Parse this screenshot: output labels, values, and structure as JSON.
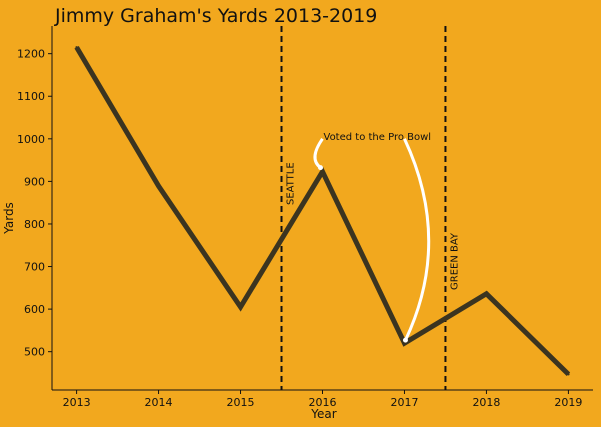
{
  "chart_data": {
    "type": "line",
    "title": "Jimmy Graham's Yards 2013-2019",
    "xlabel": "Year",
    "ylabel": "Yards",
    "x": [
      2013,
      2014,
      2015,
      2016,
      2017,
      2018,
      2019
    ],
    "series": [
      {
        "values": [
          1215,
          889,
          605,
          923,
          520,
          636,
          447
        ]
      }
    ],
    "xlim": [
      2012.7,
      2019.3
    ],
    "ylim": [
      410,
      1265
    ],
    "xticks": [
      "2013",
      "2014",
      "2015",
      "2016",
      "2017",
      "2018",
      "2019"
    ],
    "yticks": [
      "500",
      "600",
      "700",
      "800",
      "900",
      "1000",
      "1100",
      "1200"
    ],
    "grid": false,
    "vlines": [
      {
        "x": 2015.5,
        "label": "SEATTLE"
      },
      {
        "x": 2017.5,
        "label": "GREEN BAY"
      }
    ],
    "annotation": {
      "text": "Voted to the Pro Bowl",
      "text_x": 2016.0,
      "text_y": 1000,
      "targets": [
        {
          "x": 2016,
          "y": 923
        },
        {
          "x": 2017,
          "y": 520
        }
      ]
    },
    "colors": {
      "background": "#f2a81e",
      "line": "#3b3420",
      "arrow": "#ffffff"
    }
  }
}
